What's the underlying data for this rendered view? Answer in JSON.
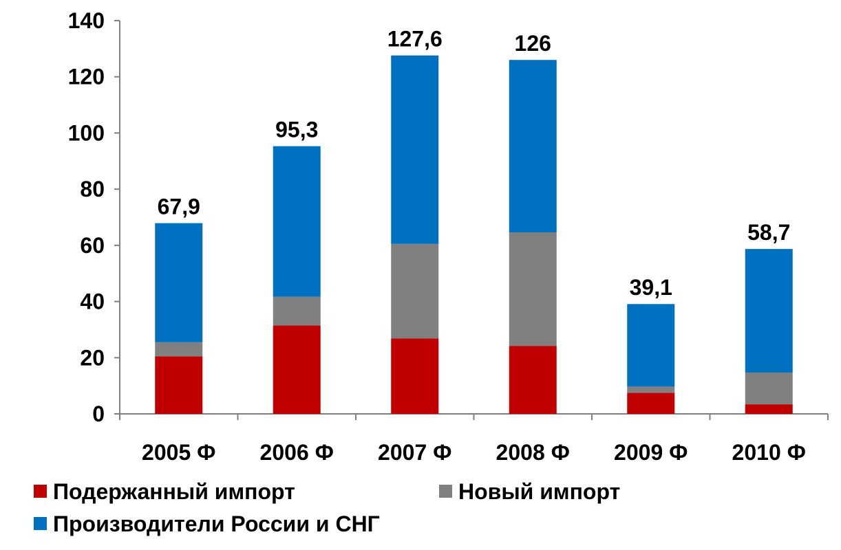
{
  "chart_data": {
    "type": "bar",
    "stacked": true,
    "categories": [
      "2005 Ф",
      "2006 Ф",
      "2007 Ф",
      "2008 Ф",
      "2009 Ф",
      "2010 Ф"
    ],
    "series": [
      {
        "name": "Подержанный импорт",
        "color": "#C00000",
        "values": [
          20.5,
          31.5,
          26.8,
          24.2,
          7.5,
          3.4
        ]
      },
      {
        "name": "Новый импорт",
        "color": "#808080",
        "values": [
          5.0,
          10.2,
          33.7,
          40.4,
          2.2,
          11.3
        ]
      },
      {
        "name": "Производители России и СНГ",
        "color": "#0070C0",
        "values": [
          42.4,
          53.6,
          67.1,
          61.4,
          29.4,
          44.0
        ]
      }
    ],
    "totals": [
      67.9,
      95.3,
      127.6,
      126,
      39.1,
      58.7
    ],
    "total_labels": [
      "67,9",
      "95,3",
      "127,6",
      "126",
      "39,1",
      "58,7"
    ],
    "ylim": [
      0,
      140
    ],
    "yticks": [
      0,
      20,
      40,
      60,
      80,
      100,
      120,
      140
    ],
    "grid": false,
    "legend_position": "bottom"
  }
}
